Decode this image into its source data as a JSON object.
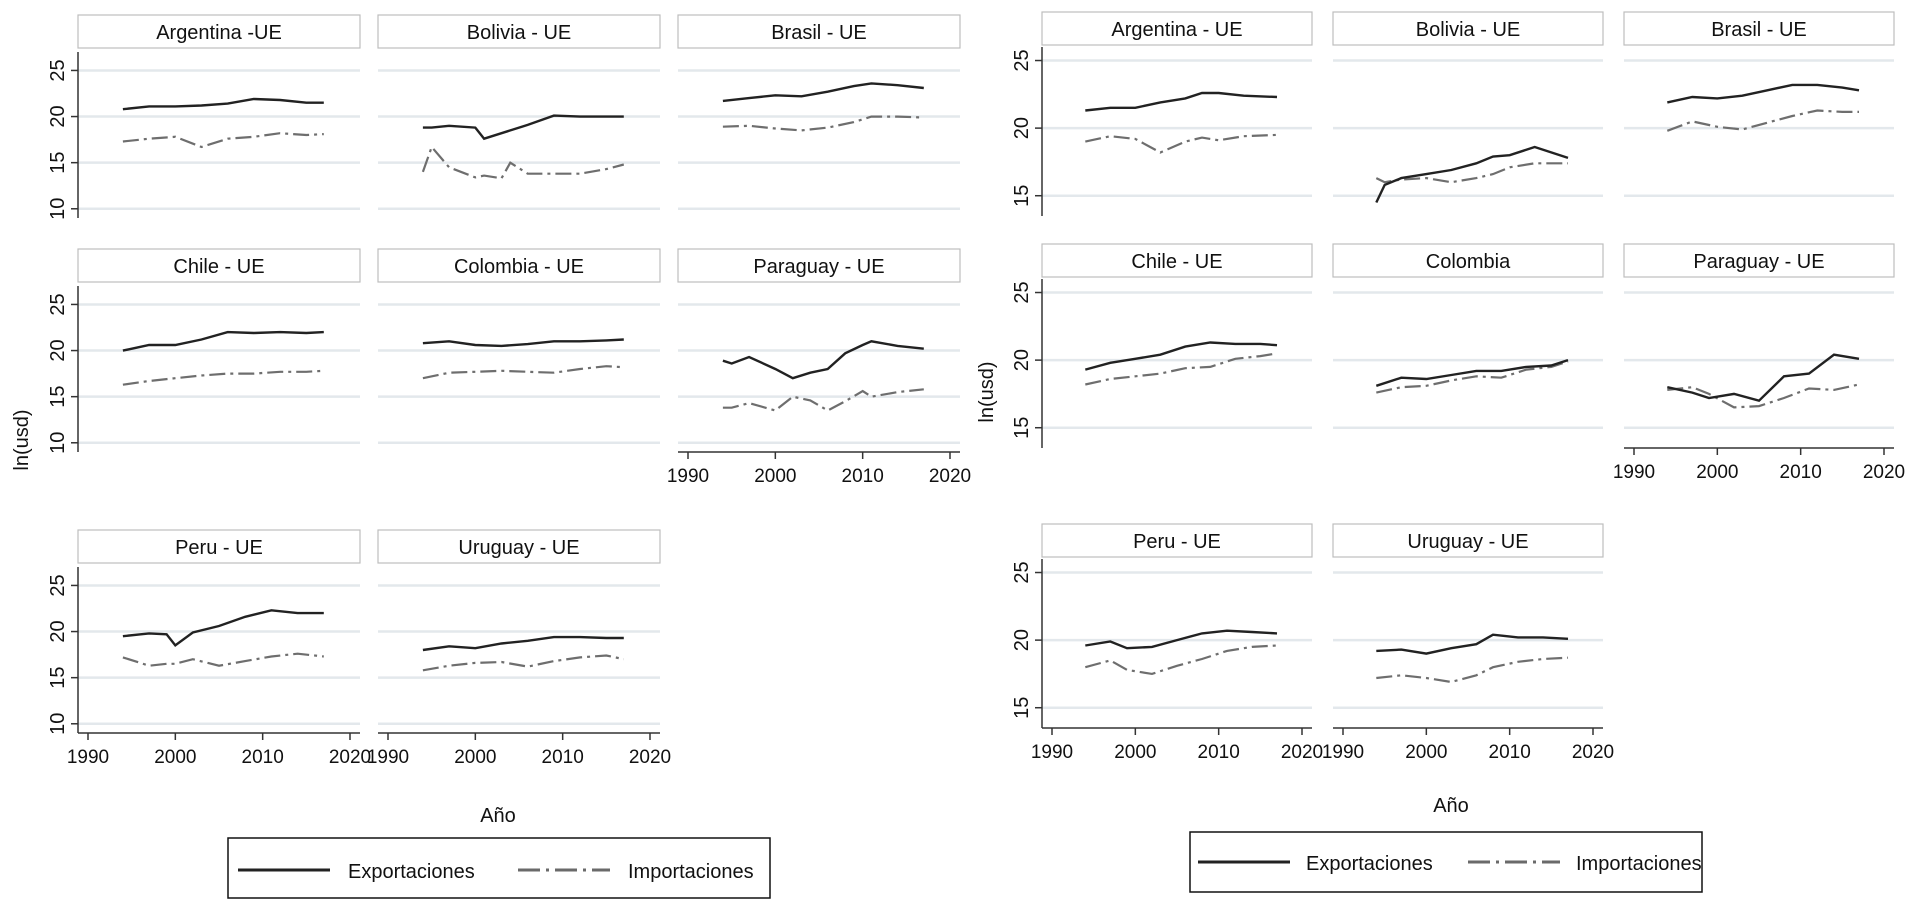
{
  "figures": [
    {
      "ylabel": "ln(usd)",
      "xlabel": "Año",
      "legend": [
        "Exportaciones",
        "Importaciones"
      ]
    },
    {
      "ylabel": "ln(usd)",
      "xlabel": "Año",
      "legend": [
        "Exportaciones",
        "Importaciones"
      ]
    }
  ],
  "chart_data": [
    {
      "type": "line",
      "layout": "small-multiples 3x3",
      "legend_position": "bottom",
      "grid": true,
      "xlim": [
        1990,
        2020
      ],
      "ylim": [
        9,
        27
      ],
      "xticks": [
        1990,
        2000,
        2010,
        2020
      ],
      "yticks": [
        10,
        15,
        20,
        25
      ],
      "panels": [
        {
          "title": "Argentina -UE",
          "x": [
            1994,
            1997,
            2000,
            2003,
            2006,
            2009,
            2012,
            2015,
            2017
          ],
          "exports": [
            20.8,
            21.1,
            21.1,
            21.2,
            21.4,
            21.9,
            21.8,
            21.5,
            21.5
          ],
          "imports": [
            17.3,
            17.6,
            17.8,
            16.7,
            17.6,
            17.8,
            18.2,
            18.0,
            18.1
          ]
        },
        {
          "title": "Bolivia - UE",
          "x": [
            1994,
            1995,
            1997,
            2000,
            2001,
            2003,
            2004,
            2006,
            2009,
            2012,
            2015,
            2017
          ],
          "exports": [
            18.8,
            18.8,
            19.0,
            18.8,
            17.6,
            18.2,
            18.5,
            19.1,
            20.1,
            20.0,
            20.0,
            20.0
          ],
          "imports": [
            14.0,
            16.7,
            14.5,
            13.4,
            13.6,
            13.3,
            15.0,
            13.8,
            13.8,
            13.8,
            14.3,
            14.8
          ]
        },
        {
          "title": "Brasil - UE",
          "x": [
            1994,
            1997,
            2000,
            2003,
            2006,
            2009,
            2011,
            2014,
            2017
          ],
          "exports": [
            21.7,
            22.0,
            22.3,
            22.2,
            22.7,
            23.3,
            23.6,
            23.4,
            23.1
          ],
          "imports": [
            18.9,
            19.0,
            18.7,
            18.5,
            18.8,
            19.4,
            20.0,
            20.0,
            19.9
          ]
        },
        {
          "title": "Chile - UE",
          "x": [
            1994,
            1997,
            2000,
            2003,
            2006,
            2009,
            2012,
            2015,
            2017
          ],
          "exports": [
            20.0,
            20.6,
            20.6,
            21.2,
            22.0,
            21.9,
            22.0,
            21.9,
            22.0
          ],
          "imports": [
            16.3,
            16.7,
            17.0,
            17.3,
            17.5,
            17.5,
            17.7,
            17.7,
            17.8
          ]
        },
        {
          "title": "Colombia - UE",
          "x": [
            1994,
            1997,
            2000,
            2003,
            2006,
            2009,
            2012,
            2015,
            2017
          ],
          "exports": [
            20.8,
            21.0,
            20.6,
            20.5,
            20.7,
            21.0,
            21.0,
            21.1,
            21.2
          ],
          "imports": [
            17.0,
            17.6,
            17.7,
            17.8,
            17.7,
            17.6,
            18.0,
            18.3,
            18.2
          ]
        },
        {
          "title": "Paraguay - UE",
          "x": [
            1994,
            1995,
            1997,
            2000,
            2002,
            2004,
            2006,
            2008,
            2010,
            2011,
            2014,
            2017
          ],
          "exports": [
            18.9,
            18.6,
            19.3,
            18.0,
            17.0,
            17.6,
            18.0,
            19.7,
            20.6,
            21.0,
            20.5,
            20.2
          ],
          "imports": [
            13.8,
            13.8,
            14.3,
            13.5,
            15.0,
            14.6,
            13.5,
            14.5,
            15.6,
            15.0,
            15.5,
            15.8
          ]
        },
        {
          "title": "Peru - UE",
          "x": [
            1994,
            1997,
            1999,
            2000,
            2002,
            2005,
            2008,
            2011,
            2014,
            2017
          ],
          "exports": [
            19.5,
            19.8,
            19.7,
            18.5,
            19.9,
            20.6,
            21.6,
            22.3,
            22.0,
            22.0
          ],
          "imports": [
            17.2,
            16.3,
            16.5,
            16.5,
            17.0,
            16.3,
            16.8,
            17.3,
            17.6,
            17.3
          ]
        },
        {
          "title": "Uruguay - UE",
          "x": [
            1994,
            1997,
            2000,
            2003,
            2006,
            2009,
            2012,
            2015,
            2017
          ],
          "exports": [
            18.0,
            18.4,
            18.2,
            18.7,
            19.0,
            19.4,
            19.4,
            19.3,
            19.3
          ],
          "imports": [
            15.8,
            16.3,
            16.6,
            16.7,
            16.2,
            16.8,
            17.2,
            17.4,
            17.0
          ]
        }
      ]
    },
    {
      "type": "line",
      "layout": "small-multiples 3x3",
      "legend_position": "bottom",
      "grid": true,
      "xlim": [
        1990,
        2020
      ],
      "ylim": [
        13.5,
        26
      ],
      "xticks": [
        1990,
        2000,
        2010,
        2020
      ],
      "yticks": [
        15,
        20,
        25
      ],
      "panels": [
        {
          "title": "Argentina - UE",
          "x": [
            1994,
            1997,
            2000,
            2003,
            2006,
            2008,
            2010,
            2013,
            2017
          ],
          "exports": [
            21.3,
            21.5,
            21.5,
            21.9,
            22.2,
            22.6,
            22.6,
            22.4,
            22.3
          ],
          "imports": [
            19.0,
            19.4,
            19.2,
            18.2,
            19.0,
            19.3,
            19.1,
            19.4,
            19.5
          ]
        },
        {
          "title": "Bolivia - UE",
          "x": [
            1994,
            1995,
            1997,
            2000,
            2003,
            2006,
            2008,
            2010,
            2013,
            2017
          ],
          "exports": [
            14.5,
            15.8,
            16.3,
            16.6,
            16.9,
            17.4,
            17.9,
            18.0,
            18.6,
            17.8
          ],
          "imports": [
            16.3,
            16.0,
            16.2,
            16.3,
            16.0,
            16.3,
            16.6,
            17.1,
            17.4,
            17.4
          ]
        },
        {
          "title": "Brasil - UE",
          "x": [
            1994,
            1997,
            2000,
            2003,
            2006,
            2009,
            2012,
            2015,
            2017
          ],
          "exports": [
            21.9,
            22.3,
            22.2,
            22.4,
            22.8,
            23.2,
            23.2,
            23.0,
            22.8
          ],
          "imports": [
            19.8,
            20.5,
            20.1,
            19.9,
            20.4,
            20.9,
            21.3,
            21.2,
            21.2
          ]
        },
        {
          "title": "Chile - UE",
          "x": [
            1994,
            1997,
            2000,
            2003,
            2006,
            2009,
            2012,
            2015,
            2017
          ],
          "exports": [
            19.3,
            19.8,
            20.1,
            20.4,
            21.0,
            21.3,
            21.2,
            21.2,
            21.1
          ],
          "imports": [
            18.2,
            18.6,
            18.8,
            19.0,
            19.4,
            19.5,
            20.1,
            20.3,
            20.5
          ]
        },
        {
          "title": "Colombia",
          "x": [
            1994,
            1997,
            2000,
            2003,
            2006,
            2009,
            2012,
            2015,
            2017
          ],
          "exports": [
            18.1,
            18.7,
            18.6,
            18.9,
            19.2,
            19.2,
            19.5,
            19.6,
            20.0
          ],
          "imports": [
            17.6,
            18.0,
            18.1,
            18.5,
            18.8,
            18.7,
            19.3,
            19.5,
            19.9
          ]
        },
        {
          "title": "Paraguay - UE",
          "x": [
            1994,
            1997,
            1999,
            2002,
            2005,
            2008,
            2011,
            2014,
            2017
          ],
          "exports": [
            18.0,
            17.6,
            17.2,
            17.5,
            17.0,
            18.8,
            19.0,
            20.4,
            20.1
          ],
          "imports": [
            17.8,
            18.0,
            17.5,
            16.5,
            16.6,
            17.2,
            17.9,
            17.8,
            18.2
          ]
        },
        {
          "title": "Peru - UE",
          "x": [
            1994,
            1997,
            1999,
            2002,
            2005,
            2008,
            2011,
            2014,
            2017
          ],
          "exports": [
            19.6,
            19.9,
            19.4,
            19.5,
            20.0,
            20.5,
            20.7,
            20.6,
            20.5
          ],
          "imports": [
            18.0,
            18.5,
            17.8,
            17.5,
            18.1,
            18.6,
            19.2,
            19.5,
            19.6
          ]
        },
        {
          "title": "Uruguay - UE",
          "x": [
            1994,
            1997,
            2000,
            2003,
            2006,
            2008,
            2011,
            2014,
            2017
          ],
          "exports": [
            19.2,
            19.3,
            19.0,
            19.4,
            19.7,
            20.4,
            20.2,
            20.2,
            20.1
          ],
          "imports": [
            17.2,
            17.4,
            17.2,
            16.9,
            17.4,
            18.0,
            18.4,
            18.6,
            18.7
          ]
        }
      ]
    }
  ]
}
